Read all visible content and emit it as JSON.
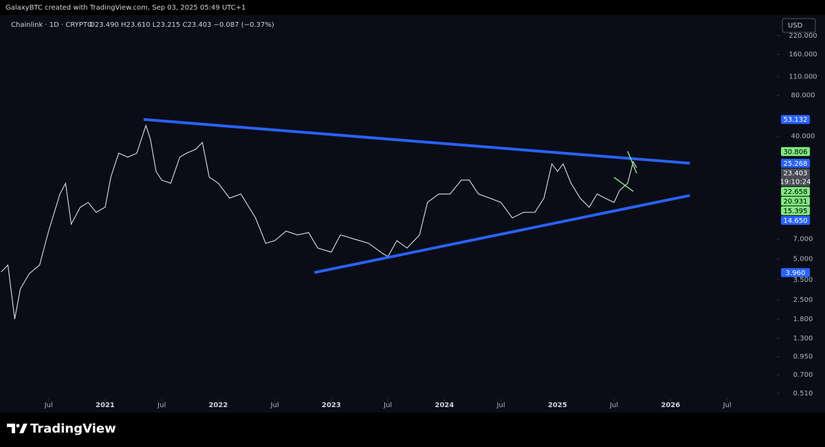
{
  "header": "GalaxyBTC created with TradingView.com, Sep 03, 2025 05:49 UTC+1",
  "legend": {
    "symbol": "Chainlink · 1D · CRYPTO",
    "ohlc": "O23.490 H23.610 L23.215 C23.403 −0.087 (−0.37%)"
  },
  "currency": "USD",
  "brand": "TradingView",
  "chart_data": {
    "type": "line",
    "log_scale": true,
    "x": [
      2020.08,
      2020.14,
      2020.2,
      2020.25,
      2020.33,
      2020.42,
      2020.5,
      2020.6,
      2020.65,
      2020.7,
      2020.78,
      2020.85,
      2020.92,
      2021.0,
      2021.05,
      2021.12,
      2021.2,
      2021.28,
      2021.36,
      2021.4,
      2021.45,
      2021.5,
      2021.58,
      2021.66,
      2021.72,
      2021.8,
      2021.86,
      2021.92,
      2022.0,
      2022.1,
      2022.2,
      2022.33,
      2022.42,
      2022.5,
      2022.6,
      2022.7,
      2022.8,
      2022.88,
      2023.0,
      2023.08,
      2023.2,
      2023.33,
      2023.45,
      2023.5,
      2023.58,
      2023.67,
      2023.78,
      2023.85,
      2023.95,
      2024.05,
      2024.15,
      2024.22,
      2024.3,
      2024.4,
      2024.5,
      2024.6,
      2024.7,
      2024.8,
      2024.88,
      2024.95,
      2025.0,
      2025.05,
      2025.12,
      2025.2,
      2025.28,
      2025.35,
      2025.42,
      2025.5,
      2025.55,
      2025.62,
      2025.67,
      2025.7
    ],
    "series": [
      {
        "color": "#d1d4dc",
        "values": [
          4.0,
          4.5,
          1.8,
          3.0,
          3.9,
          4.5,
          8,
          15,
          18,
          9,
          12,
          13,
          11,
          12,
          20,
          30,
          28,
          30,
          48,
          38,
          22,
          19,
          18,
          28,
          30,
          32,
          36,
          20,
          18,
          14,
          15,
          10,
          6.5,
          6.8,
          8,
          7.5,
          7.8,
          6.0,
          5.6,
          7.5,
          7.0,
          6.5,
          5.5,
          5.2,
          6.8,
          6.0,
          7.5,
          13,
          15,
          15,
          19,
          19,
          15,
          14,
          13,
          10,
          11,
          11,
          14,
          25,
          22,
          25,
          18,
          14,
          12,
          15,
          14,
          13,
          16,
          18,
          26,
          23.4
        ]
      }
    ],
    "xlim": [
      2020.07,
      2026.94
    ],
    "ylim": [
      0.465,
      319
    ],
    "xticks": [
      {
        "value": 2020.5,
        "label": "Jul"
      },
      2021,
      {
        "value": 2021.5,
        "label": "Jul"
      },
      2022,
      {
        "value": 2022.5,
        "label": "Jul"
      },
      2023,
      {
        "value": 2023.5,
        "label": "Jul"
      },
      2024,
      {
        "value": 2024.5,
        "label": "Jul"
      },
      2025,
      {
        "value": 2025.5,
        "label": "Jul"
      },
      2026,
      {
        "value": 2026.5,
        "label": "Jul"
      }
    ],
    "yticks": [
      {
        "value": 220,
        "label": "220.000"
      },
      {
        "value": 160,
        "label": "160.000"
      },
      {
        "value": 110,
        "label": "110.000"
      },
      {
        "value": 80,
        "label": "80.000"
      },
      {
        "value": 40,
        "label": "40.000"
      },
      {
        "value": 7,
        "label": "7.000"
      },
      {
        "value": 5,
        "label": "5.000"
      },
      {
        "value": 3.5,
        "label": "3.500"
      },
      {
        "value": 2.5,
        "label": "2.500"
      },
      {
        "value": 1.8,
        "label": "1.800"
      },
      {
        "value": 1.3,
        "label": "1.300"
      },
      {
        "value": 0.95,
        "label": "0.950"
      },
      {
        "value": 0.7,
        "label": "0.700"
      },
      {
        "value": 0.51,
        "label": "0.510"
      }
    ],
    "trendlines": [
      {
        "color": "#2962ff",
        "x": [
          2021.34,
          2026.17
        ],
        "y": [
          53.132,
          25.268
        ]
      },
      {
        "color": "#2962ff",
        "x": [
          2022.85,
          2026.17
        ],
        "y": [
          3.96,
          14.65
        ]
      },
      {
        "color": "#7ee87e",
        "x": [
          2025.5,
          2025.67
        ],
        "y": [
          19.9,
          15.7
        ]
      },
      {
        "color": "#7ee87e",
        "x": [
          2025.62,
          2025.7
        ],
        "y": [
          31.0,
          21.3
        ]
      }
    ],
    "price_labels": [
      {
        "value": 53.132,
        "label": "53.132",
        "color": "#2962ff"
      },
      {
        "value": 30.806,
        "label": "30.806",
        "color": "#7ee87e"
      },
      {
        "value": 25.268,
        "label": "25.268",
        "color": "#2962ff"
      },
      {
        "value": 23.403,
        "label": "23.403",
        "color": "#4a4d56",
        "sub": "19:10:24"
      },
      {
        "value": 22.658,
        "label": "22.658",
        "color": "#7ee87e"
      },
      {
        "value": 20.931,
        "label": "20.931",
        "color": "#7ee87e"
      },
      {
        "value": 15.395,
        "label": "15.395",
        "color": "#7ee87e"
      },
      {
        "value": 14.65,
        "label": "14.650",
        "color": "#2962ff"
      },
      {
        "value": 3.96,
        "label": "3.960",
        "color": "#2962ff"
      }
    ]
  }
}
